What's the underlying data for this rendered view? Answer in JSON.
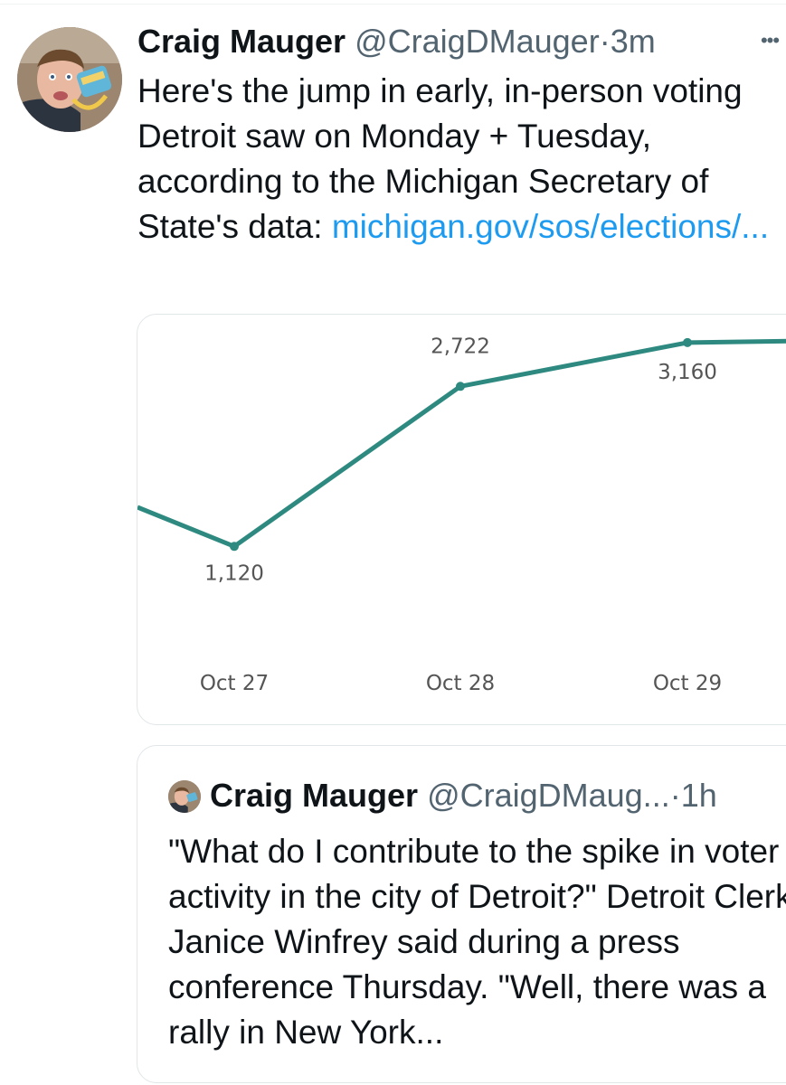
{
  "tweet": {
    "author_name": "Craig Mauger",
    "handle": "@CraigDMauger",
    "separator": "·",
    "time": "3m",
    "more_icon": "more-horizontal-icon",
    "text": "Here's the jump in early, in-person voting Detroit saw on Monday + Tuesday, according to the Michigan Secretary of State's data: ",
    "link_text": "michigan.gov/sos/elections/..."
  },
  "chart_data": {
    "type": "line",
    "categories": [
      "Oct 27",
      "Oct 28",
      "Oct 29"
    ],
    "series": [
      {
        "values": [
          1120,
          2722,
          3160
        ]
      }
    ],
    "data_labels": [
      "1,120",
      "2,722",
      "3,160"
    ],
    "color": "#2e8a80",
    "label_color": "#555555",
    "grid": false,
    "note": "line continues off both left and right edges of the visible card"
  },
  "quoted_tweet": {
    "author_name": "Craig Mauger",
    "handle": "@CraigDMaug...",
    "separator": "·",
    "time": "1h",
    "text": "\"What do I contribute to the spike in voter activity in the city of Detroit?\" Detroit Clerk Janice Winfrey said during a press conference Thursday. \"Well, there was a rally in New York..."
  }
}
